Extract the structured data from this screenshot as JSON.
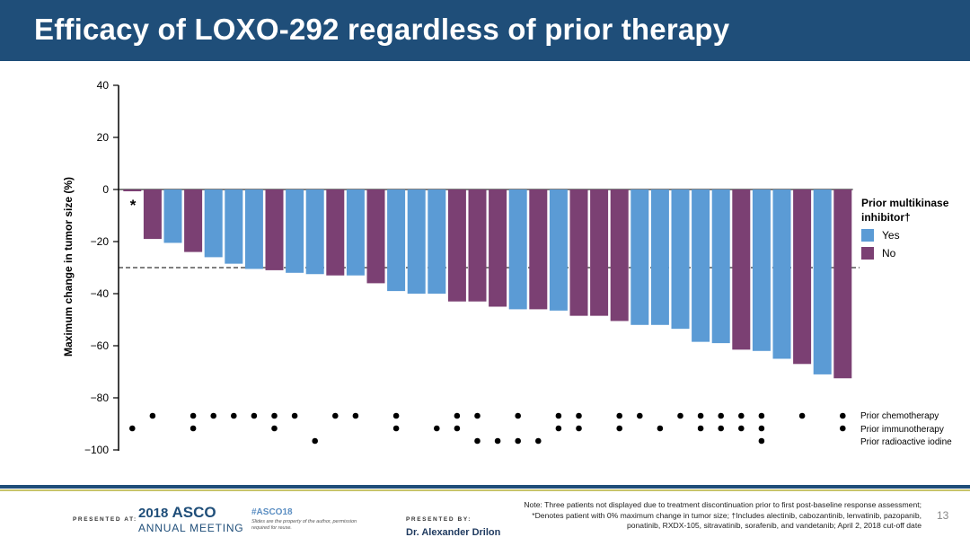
{
  "slide": {
    "title": "Efficacy of LOXO-292 regardless of prior therapy",
    "slide_number": "13"
  },
  "colors": {
    "title_bar": "#1f4e79",
    "yes": "#5b9bd5",
    "no": "#7b4073",
    "gold_rule": "#c8c46a"
  },
  "chart_data": {
    "type": "bar",
    "subtype": "waterfall",
    "ylabel": "Maximum change in tumor size (%)",
    "xlabel": "",
    "ylim": [
      -100,
      40
    ],
    "yticks": [
      40,
      20,
      0,
      -20,
      -40,
      -60,
      -80,
      -100
    ],
    "ytick_labels": [
      "40",
      "20",
      "0",
      "−20",
      "−40",
      "−60",
      "−80",
      "−100"
    ],
    "reference_line": -30,
    "asterisk_label": "*",
    "legend": {
      "title_line1": "Prior multikinase",
      "title_line2": "inhibitor†",
      "position": "right",
      "items": [
        {
          "label": "Yes",
          "color": "#5b9bd5"
        },
        {
          "label": "No",
          "color": "#7b4073"
        }
      ]
    },
    "values": [
      0,
      -19,
      -20.5,
      -24,
      -26,
      -28.5,
      -30.5,
      -31,
      -32,
      -32.5,
      -33,
      -33,
      -36,
      -39,
      -40,
      -40,
      -43,
      -43,
      -45,
      -46,
      -46,
      -46.5,
      -48.5,
      -48.5,
      -50.5,
      -52,
      -52,
      -53.5,
      -58.5,
      -59,
      -61.5,
      -62,
      -65,
      -67,
      -71,
      -72.5
    ],
    "prior_mki": [
      "No",
      "No",
      "Yes",
      "No",
      "Yes",
      "Yes",
      "Yes",
      "No",
      "Yes",
      "Yes",
      "No",
      "Yes",
      "No",
      "Yes",
      "Yes",
      "Yes",
      "No",
      "No",
      "No",
      "Yes",
      "No",
      "Yes",
      "No",
      "No",
      "No",
      "Yes",
      "Yes",
      "Yes",
      "Yes",
      "Yes",
      "No",
      "Yes",
      "Yes",
      "No",
      "Yes",
      "No"
    ],
    "prior_therapy_rows": [
      {
        "label": "Prior chemotherapy",
        "marks": [
          1,
          3,
          4,
          5,
          6,
          7,
          8,
          10,
          11,
          13,
          16,
          17,
          19,
          21,
          22,
          24,
          25,
          27,
          28,
          29,
          30,
          31,
          33,
          35
        ]
      },
      {
        "label": "Prior immunotherapy",
        "marks": [
          0,
          3,
          7,
          13,
          15,
          16,
          21,
          22,
          24,
          26,
          28,
          29,
          30,
          31,
          35
        ]
      },
      {
        "label": "Prior radioactive iodine",
        "marks": [
          9,
          17,
          18,
          19,
          20,
          31
        ]
      }
    ]
  },
  "footer": {
    "presented_at": "PRESENTED AT:",
    "asco_year": "2018",
    "asco_name": "ASCO",
    "asco_meeting": "ANNUAL MEETING",
    "hashtag": "#ASCO18",
    "rights": "Slides are the property of the author, permission required for reuse.",
    "presented_by": "PRESENTED BY:",
    "presenter": "Dr. Alexander Drilon",
    "note": "Note: Three patients not displayed due to treatment discontinuation prior to first post-baseline response assessment; *Denotes patient with 0% maximum change in tumor size; †Includes alectinib, cabozantinib, lenvatinib, pazopanib, ponatinib, RXDX-105, sitravatinib, sorafenib, and vandetanib; April 2, 2018 cut-off date"
  }
}
